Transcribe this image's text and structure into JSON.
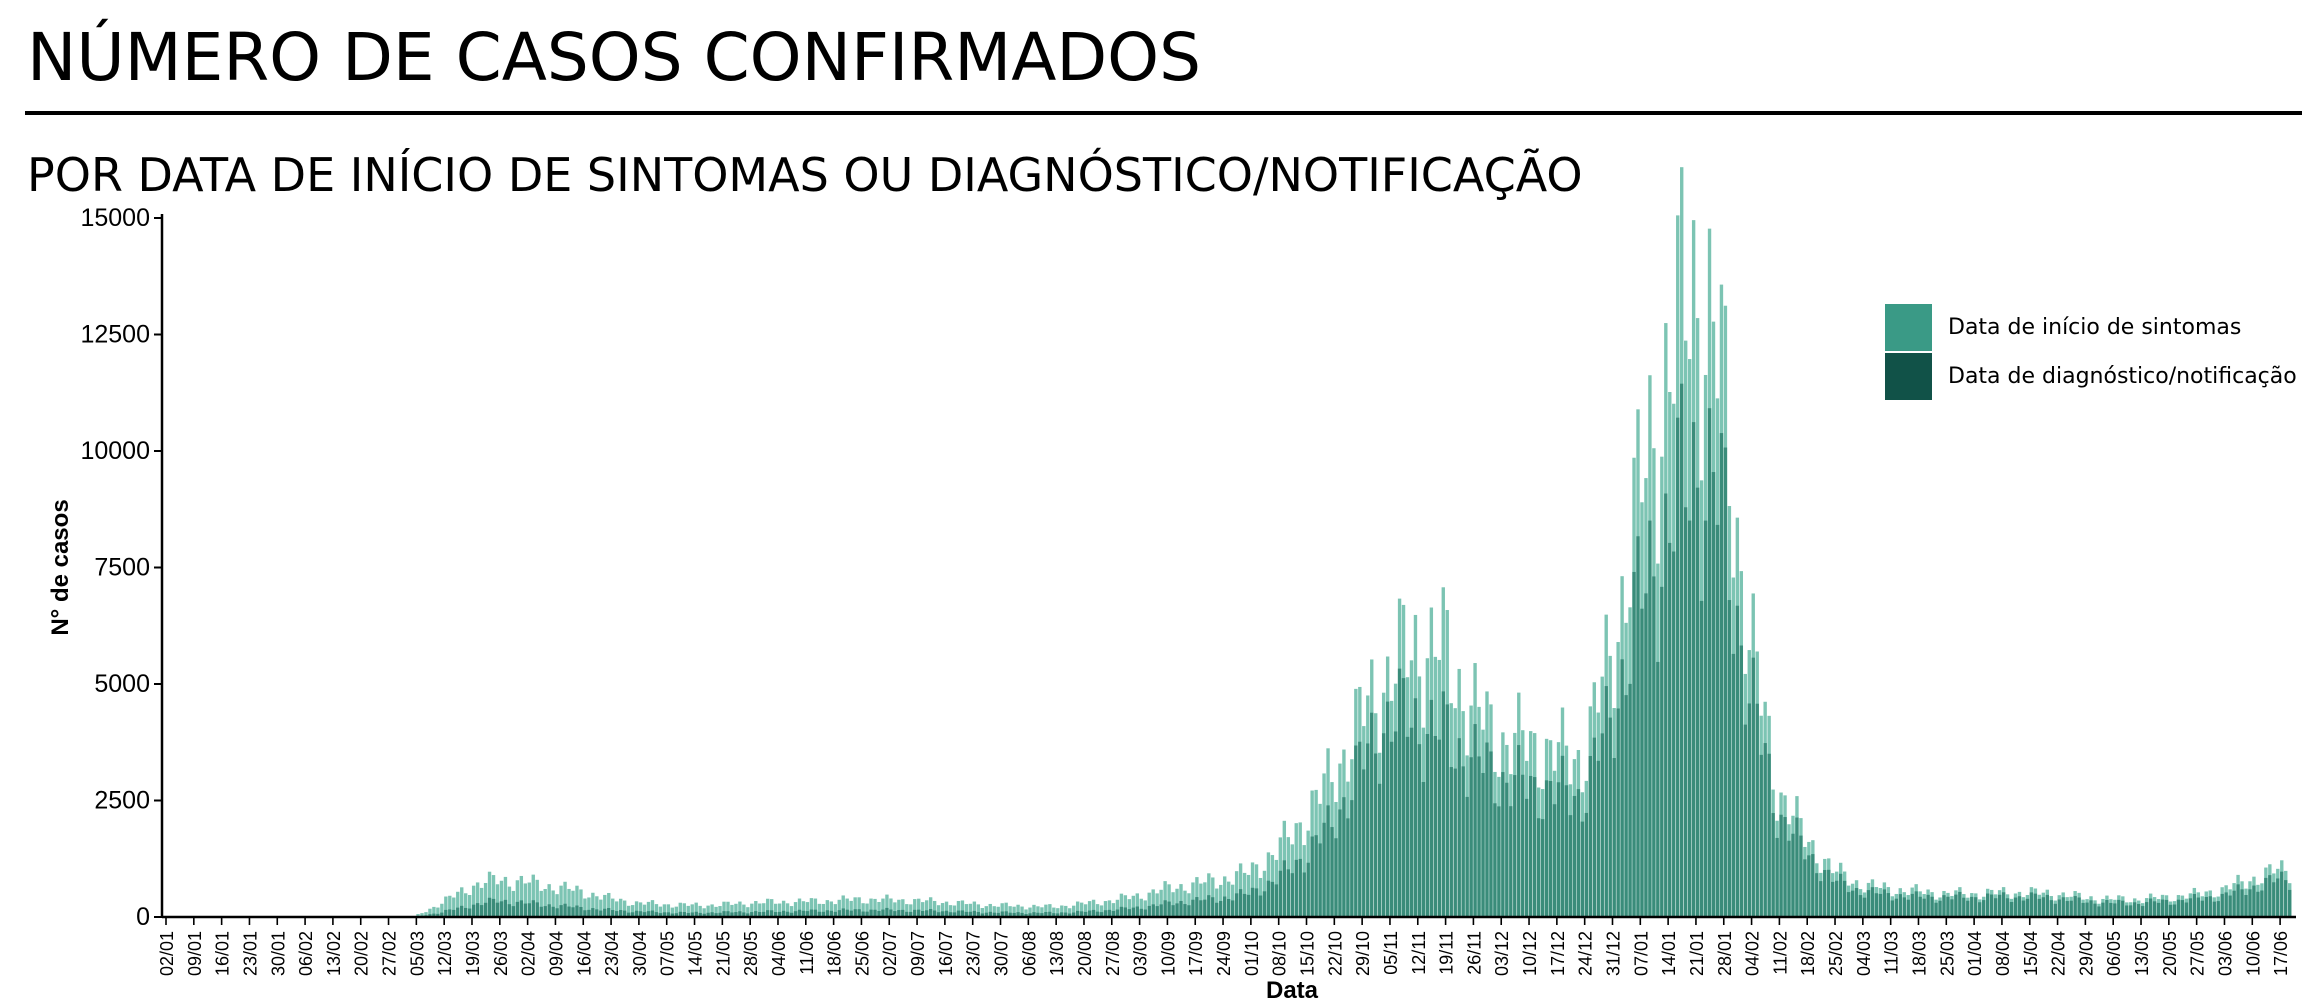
{
  "header": {
    "title": "NÚMERO DE CASOS CONFIRMADOS",
    "subtitle": "POR DATA DE INÍCIO DE SINTOMAS OU DIAGNÓSTICO/NOTIFICAÇÃO"
  },
  "chart_data": {
    "type": "bar",
    "title": "NÚMERO DE CASOS CONFIRMADOS",
    "subtitle": "POR DATA DE INÍCIO DE SINTOMAS OU DIAGNÓSTICO/NOTIFICAÇÃO",
    "xlabel": "Data",
    "ylabel": "N° de casos",
    "ylim": [
      0,
      15000
    ],
    "yticks": [
      0,
      2500,
      5000,
      7500,
      10000,
      12500,
      15000
    ],
    "xtick_labels": [
      "02/01",
      "09/01",
      "16/01",
      "23/01",
      "30/01",
      "06/02",
      "13/02",
      "20/02",
      "27/02",
      "05/03",
      "12/03",
      "19/03",
      "26/03",
      "02/04",
      "09/04",
      "16/04",
      "23/04",
      "30/04",
      "07/05",
      "14/05",
      "21/05",
      "28/05",
      "04/06",
      "11/06",
      "18/06",
      "25/06",
      "02/07",
      "09/07",
      "16/07",
      "23/07",
      "30/07",
      "06/08",
      "13/08",
      "20/08",
      "27/08",
      "03/09",
      "10/09",
      "17/09",
      "24/09",
      "01/10",
      "08/10",
      "15/10",
      "22/10",
      "29/10",
      "05/11",
      "12/11",
      "19/11",
      "26/11",
      "03/12",
      "10/12",
      "17/12",
      "24/12",
      "31/12",
      "07/01",
      "14/01",
      "21/01",
      "28/01",
      "04/02",
      "11/02",
      "18/02",
      "25/02",
      "04/03",
      "11/03",
      "18/03",
      "25/03",
      "01/04",
      "08/04",
      "15/04",
      "22/04",
      "29/04",
      "06/05",
      "13/05",
      "20/05",
      "27/05",
      "03/06",
      "10/06",
      "17/06"
    ],
    "legend_position": "top-right",
    "grid": false,
    "series": [
      {
        "name": "Data de início de sintomas",
        "color": "#7cc4b3",
        "legend_color": "#3a9a86",
        "weekly_values": [
          0,
          0,
          0,
          0,
          0,
          0,
          0,
          0,
          0,
          10,
          300,
          650,
          800,
          750,
          650,
          550,
          400,
          300,
          270,
          250,
          260,
          300,
          320,
          330,
          350,
          380,
          370,
          350,
          320,
          280,
          250,
          230,
          220,
          280,
          350,
          450,
          600,
          700,
          800,
          950,
          1400,
          2100,
          3000,
          4200,
          5200,
          5800,
          5700,
          4500,
          3800,
          3700,
          3500,
          3400,
          5500,
          8800,
          11500,
          13800,
          11500,
          6000,
          2800,
          1700,
          1000,
          700,
          600,
          550,
          500,
          500,
          520,
          520,
          500,
          420,
          380,
          380,
          420,
          480,
          580,
          800,
          1000
        ]
      },
      {
        "name": "Data de diagnóstico/notificação",
        "color": "#3a8c7a",
        "legend_color": "#115248",
        "weekly_values": [
          0,
          0,
          0,
          0,
          0,
          0,
          0,
          0,
          0,
          5,
          100,
          250,
          350,
          300,
          250,
          200,
          150,
          120,
          100,
          90,
          100,
          110,
          120,
          130,
          140,
          150,
          150,
          140,
          130,
          110,
          100,
          90,
          90,
          110,
          150,
          200,
          280,
          350,
          400,
          500,
          800,
          1300,
          2000,
          3200,
          4300,
          4200,
          3900,
          3400,
          3000,
          2800,
          2700,
          2600,
          4200,
          6600,
          8200,
          9800,
          8800,
          4800,
          2300,
          1400,
          800,
          550,
          480,
          430,
          420,
          420,
          430,
          430,
          400,
          340,
          300,
          300,
          330,
          380,
          450,
          620,
          800
        ]
      }
    ]
  }
}
